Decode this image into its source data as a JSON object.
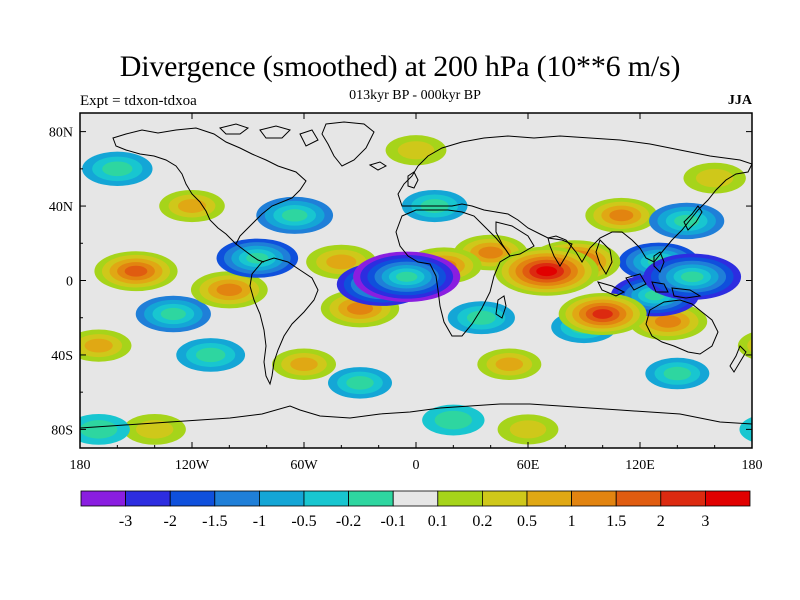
{
  "figure": {
    "title": "Divergence (smoothed) at 200 hPa (10**6 m/s)",
    "subtitle": "013kyr BP - 000kyr BP",
    "experiment": "Expt = tdxon-tdxoa",
    "season": "JJA"
  },
  "map": {
    "projection": "cylindrical equidistant",
    "lon_range": [
      -180,
      180
    ],
    "lat_range": [
      -90,
      90
    ],
    "lon_ticks": [
      "180",
      "120W",
      "60W",
      "0",
      "60E",
      "120E",
      "180"
    ],
    "lat_ticks": [
      "80N",
      "40N",
      "0",
      "40S",
      "80S"
    ],
    "coastlines": true
  },
  "colorbar": {
    "labels": [
      "-3",
      "-2",
      "-1.5",
      "-1",
      "-0.5",
      "-0.2",
      "-0.1",
      "0.1",
      "0.2",
      "0.5",
      "1",
      "1.5",
      "2",
      "3"
    ],
    "colors": [
      "#8a1ee0",
      "#2d2de0",
      "#0f50dc",
      "#1f7fd8",
      "#14a6d6",
      "#18c6d0",
      "#2ed6a0",
      "#e6e6e6",
      "#a6d41a",
      "#cfc81a",
      "#e0a814",
      "#e28410",
      "#e05c10",
      "#dc2a10",
      "#e10000"
    ]
  },
  "chart_data": {
    "type": "heatmap",
    "title": "Divergence (smoothed) at 200 hPa (10**6 m/s)",
    "subtitle": "013kyr BP - 000kyr BP",
    "levels": [
      -3,
      -2,
      -1.5,
      -1,
      -0.5,
      -0.2,
      -0.1,
      0.1,
      0.2,
      0.5,
      1,
      1.5,
      2,
      3
    ],
    "features": [
      {
        "lon": -5,
        "lat": 2,
        "value": -3.2
      },
      {
        "lon": -18,
        "lat": -2,
        "value": -2.2
      },
      {
        "lon": 148,
        "lat": 2,
        "value": -2.6
      },
      {
        "lon": 128,
        "lat": -8,
        "value": -2.0
      },
      {
        "lon": 130,
        "lat": 10,
        "value": -1.5
      },
      {
        "lon": 145,
        "lat": 32,
        "value": -1.2
      },
      {
        "lon": -85,
        "lat": 12,
        "value": -1.6
      },
      {
        "lon": -65,
        "lat": 35,
        "value": -1.3
      },
      {
        "lon": -160,
        "lat": 60,
        "value": -0.9
      },
      {
        "lon": -130,
        "lat": -18,
        "value": -1.2
      },
      {
        "lon": -110,
        "lat": -40,
        "value": -0.8
      },
      {
        "lon": 10,
        "lat": 40,
        "value": -0.6
      },
      {
        "lon": 35,
        "lat": -20,
        "value": -0.7
      },
      {
        "lon": 90,
        "lat": -25,
        "value": -0.6
      },
      {
        "lon": 140,
        "lat": -50,
        "value": -0.5
      },
      {
        "lon": -30,
        "lat": -55,
        "value": -0.5
      },
      {
        "lon": 70,
        "lat": 5,
        "value": 3.0
      },
      {
        "lon": 85,
        "lat": 10,
        "value": 2.2
      },
      {
        "lon": 100,
        "lat": -18,
        "value": 2.0
      },
      {
        "lon": 135,
        "lat": -22,
        "value": 1.4
      },
      {
        "lon": -150,
        "lat": 5,
        "value": 1.7
      },
      {
        "lon": -100,
        "lat": -5,
        "value": 1.3
      },
      {
        "lon": -30,
        "lat": -15,
        "value": 1.4
      },
      {
        "lon": 15,
        "lat": 8,
        "value": 1.2
      },
      {
        "lon": 40,
        "lat": 15,
        "value": 1.1
      },
      {
        "lon": -40,
        "lat": 10,
        "value": 0.9
      },
      {
        "lon": 110,
        "lat": 35,
        "value": 1.0
      },
      {
        "lon": -120,
        "lat": 40,
        "value": 0.6
      },
      {
        "lon": 160,
        "lat": 55,
        "value": 0.4
      },
      {
        "lon": -170,
        "lat": -35,
        "value": 0.6
      },
      {
        "lon": -60,
        "lat": -45,
        "value": 0.5
      },
      {
        "lon": 50,
        "lat": -45,
        "value": 0.5
      },
      {
        "lon": 0,
        "lat": 70,
        "value": 0.3
      },
      {
        "lon": -140,
        "lat": -80,
        "value": 0.4
      },
      {
        "lon": 60,
        "lat": -80,
        "value": 0.3
      },
      {
        "lon": -170,
        "lat": -80,
        "value": -0.4
      },
      {
        "lon": 20,
        "lat": -75,
        "value": -0.4
      }
    ]
  }
}
